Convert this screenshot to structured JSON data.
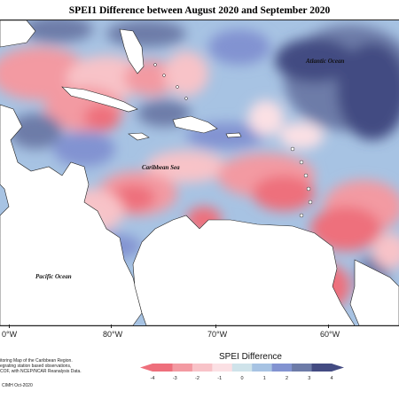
{
  "title": "SPEI1 Difference between August 2020 and September 2020",
  "labels": {
    "atlantic": "Atlantic Ocean",
    "caribbean": "Caribbean Sea",
    "pacific": "Pacific Ocean"
  },
  "longitudes": [
    "0°W",
    "80°W",
    "70°W",
    "60°W"
  ],
  "legend": {
    "title": "SPEI Difference",
    "ticks": [
      "-4",
      "-3",
      "-2",
      "-1",
      "0",
      "1",
      "2",
      "3",
      "4"
    ],
    "colors": [
      "#ee6f7c",
      "#f39aa2",
      "#f8c3c8",
      "#fbe0e4",
      "#cfe3ea",
      "#a7c3e3",
      "#8293d1",
      "#6d7ba8",
      "#434b82"
    ]
  },
  "credit": [
    "itoring Map of the Caribbean Region.",
    "egrating station based observations,",
    "COF, with NCEP/NCAR Reanalysis Data.",
    "CIMH Oct-2020"
  ]
}
